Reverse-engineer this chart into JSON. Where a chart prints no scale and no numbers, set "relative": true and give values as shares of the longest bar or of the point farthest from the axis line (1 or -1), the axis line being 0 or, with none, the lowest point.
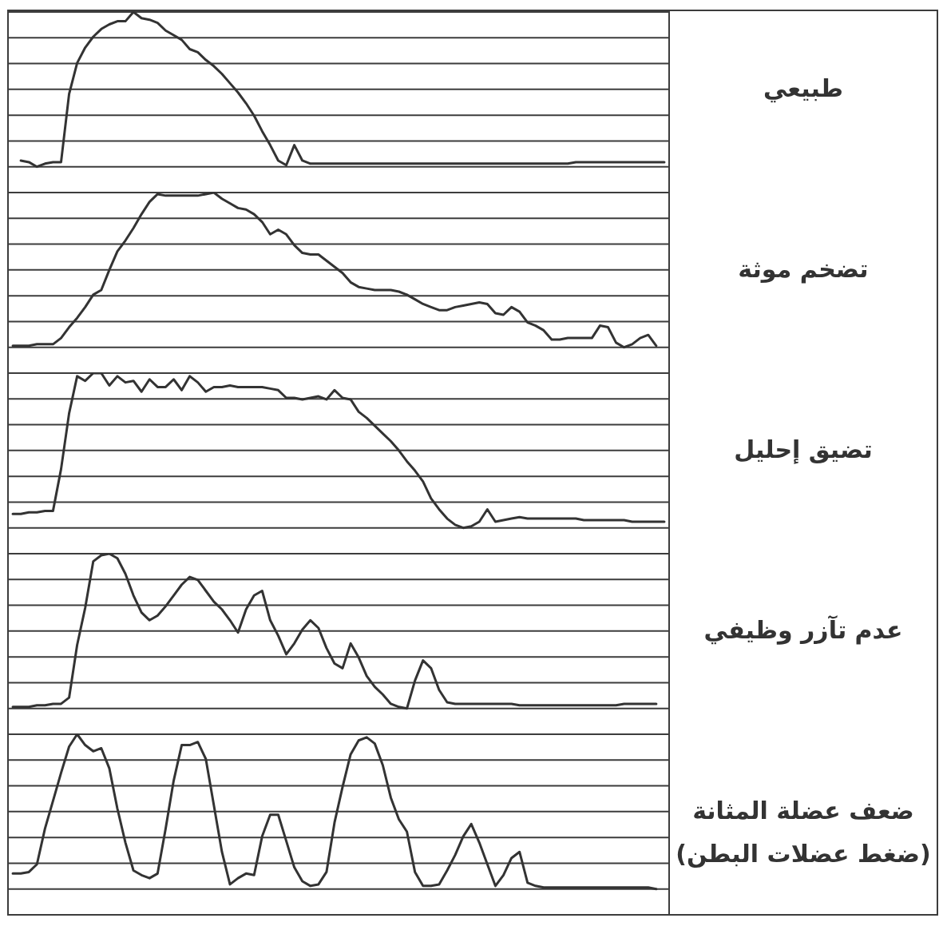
{
  "chart_data": [
    {
      "type": "line",
      "relative": true,
      "grid": "y",
      "categories": [
        null,
        null,
        null,
        null,
        null,
        null,
        null,
        null,
        null,
        null,
        null,
        null,
        null,
        null,
        null,
        null,
        null,
        null,
        null,
        null,
        null,
        null,
        null,
        null,
        null,
        null,
        null,
        null,
        null,
        null,
        null,
        null,
        null,
        null,
        null,
        null,
        null,
        null,
        null,
        null,
        null,
        null,
        null,
        null,
        null,
        null,
        null,
        null,
        null,
        null,
        null,
        null,
        null,
        null,
        null,
        null,
        null,
        null,
        null,
        null,
        null,
        null,
        null,
        null,
        null,
        null,
        null,
        null,
        null,
        null,
        null,
        null,
        null,
        null,
        null,
        null,
        null,
        null,
        null,
        null,
        null,
        null
      ],
      "series": [
        {
          "name": "طبيعي",
          "color": "#333333",
          "values": [
            null,
            0.04,
            0.03,
            0,
            0.02,
            0.03,
            0.03,
            0.47,
            0.67,
            0.77,
            0.84,
            0.89,
            0.92,
            0.94,
            0.94,
            1.0,
            0.96,
            0.95,
            0.93,
            0.88,
            0.85,
            0.82,
            0.76,
            0.74,
            0.69,
            0.65,
            0.6,
            0.54,
            0.48,
            0.41,
            0.33,
            0.23,
            0.14,
            0.04,
            0.01,
            0.14,
            0.04,
            0.02,
            0.02,
            0.02,
            0.02,
            0.02,
            0.02,
            0.02,
            0.02,
            0.02,
            0.02,
            0.02,
            0.02,
            0.02,
            0.02,
            0.02,
            0.02,
            0.02,
            0.02,
            0.02,
            0.02,
            0.02,
            0.02,
            0.02,
            0.02,
            0.02,
            0.02,
            0.02,
            0.02,
            0.02,
            0.02,
            0.02,
            0.02,
            0.02,
            0.03,
            0.03,
            0.03,
            0.03,
            0.03,
            0.03,
            0.03,
            0.03,
            0.03,
            0.03,
            0.03,
            0.03
          ]
        }
      ]
    },
    {
      "type": "line",
      "relative": true,
      "grid": "y",
      "categories": [
        null,
        null,
        null,
        null,
        null,
        null,
        null,
        null,
        null,
        null,
        null,
        null,
        null,
        null,
        null,
        null,
        null,
        null,
        null,
        null,
        null,
        null,
        null,
        null,
        null,
        null,
        null,
        null,
        null,
        null,
        null,
        null,
        null,
        null,
        null,
        null,
        null,
        null,
        null,
        null,
        null,
        null,
        null,
        null,
        null,
        null,
        null,
        null,
        null,
        null,
        null,
        null,
        null,
        null,
        null,
        null,
        null,
        null,
        null,
        null,
        null,
        null,
        null,
        null,
        null,
        null,
        null,
        null,
        null,
        null,
        null,
        null,
        null,
        null,
        null,
        null,
        null,
        null,
        null,
        null,
        null,
        null
      ],
      "series": [
        {
          "name": "تضخم موثة",
          "color": "#333333",
          "values": [
            0.01,
            0.01,
            0.01,
            0.02,
            0.02,
            0.02,
            0.06,
            0.13,
            0.19,
            0.26,
            0.34,
            0.37,
            0.5,
            0.62,
            0.69,
            0.77,
            0.86,
            0.94,
            0.99,
            0.98,
            0.98,
            0.98,
            0.98,
            0.98,
            0.99,
            1.0,
            0.96,
            0.93,
            0.9,
            0.89,
            0.86,
            0.81,
            0.73,
            0.76,
            0.73,
            0.66,
            0.61,
            0.6,
            0.6,
            0.56,
            0.52,
            0.48,
            0.42,
            0.39,
            0.38,
            0.37,
            0.37,
            0.37,
            0.36,
            0.34,
            0.31,
            0.28,
            0.26,
            0.24,
            0.24,
            0.26,
            0.27,
            0.28,
            0.29,
            0.28,
            0.22,
            0.21,
            0.26,
            0.23,
            0.16,
            0.14,
            0.11,
            0.05,
            0.05,
            0.06,
            0.06,
            0.06,
            0.06,
            0.14,
            0.13,
            0.03,
            0.0,
            0.02,
            0.06,
            0.08,
            0.01,
            null
          ]
        }
      ]
    },
    {
      "type": "line",
      "relative": true,
      "grid": "y",
      "categories": [
        null,
        null,
        null,
        null,
        null,
        null,
        null,
        null,
        null,
        null,
        null,
        null,
        null,
        null,
        null,
        null,
        null,
        null,
        null,
        null,
        null,
        null,
        null,
        null,
        null,
        null,
        null,
        null,
        null,
        null,
        null,
        null,
        null,
        null,
        null,
        null,
        null,
        null,
        null,
        null,
        null,
        null,
        null,
        null,
        null,
        null,
        null,
        null,
        null,
        null,
        null,
        null,
        null,
        null,
        null,
        null,
        null,
        null,
        null,
        null,
        null,
        null,
        null,
        null,
        null,
        null,
        null,
        null,
        null,
        null,
        null,
        null,
        null,
        null,
        null,
        null,
        null,
        null,
        null,
        null,
        null,
        null
      ],
      "series": [
        {
          "name": "تضيق إحليل",
          "color": "#333333",
          "values": [
            0.09,
            0.09,
            0.1,
            0.1,
            0.11,
            0.11,
            0.38,
            0.74,
            0.98,
            0.95,
            1.0,
            1.0,
            0.92,
            0.98,
            0.94,
            0.95,
            0.88,
            0.96,
            0.91,
            0.91,
            0.96,
            0.89,
            0.98,
            0.94,
            0.88,
            0.91,
            0.91,
            0.92,
            0.91,
            0.91,
            0.91,
            0.91,
            0.9,
            0.89,
            0.84,
            0.84,
            0.83,
            0.84,
            0.85,
            0.83,
            0.89,
            0.84,
            0.83,
            0.75,
            0.71,
            0.66,
            0.61,
            0.56,
            0.5,
            0.43,
            0.37,
            0.3,
            0.19,
            0.12,
            0.06,
            0.02,
            0.0,
            0.01,
            0.04,
            0.12,
            0.04,
            0.05,
            0.06,
            0.07,
            0.06,
            0.06,
            0.06,
            0.06,
            0.06,
            0.06,
            0.06,
            0.05,
            0.05,
            0.05,
            0.05,
            0.05,
            0.05,
            0.04,
            0.04,
            0.04,
            0.04,
            0.04
          ]
        }
      ]
    },
    {
      "type": "line",
      "relative": true,
      "grid": "y",
      "categories": [
        null,
        null,
        null,
        null,
        null,
        null,
        null,
        null,
        null,
        null,
        null,
        null,
        null,
        null,
        null,
        null,
        null,
        null,
        null,
        null,
        null,
        null,
        null,
        null,
        null,
        null,
        null,
        null,
        null,
        null,
        null,
        null,
        null,
        null,
        null,
        null,
        null,
        null,
        null,
        null,
        null,
        null,
        null,
        null,
        null,
        null,
        null,
        null,
        null,
        null,
        null,
        null,
        null,
        null,
        null,
        null,
        null,
        null,
        null,
        null,
        null,
        null,
        null,
        null,
        null,
        null,
        null,
        null,
        null,
        null,
        null,
        null,
        null,
        null,
        null,
        null,
        null,
        null,
        null,
        null,
        null,
        null
      ],
      "series": [
        {
          "name": "عدم تآزر وظيفي",
          "color": "#333333",
          "values": [
            0.01,
            0.01,
            0.01,
            0.02,
            0.02,
            0.03,
            0.03,
            0.07,
            0.41,
            0.65,
            0.95,
            0.99,
            1.0,
            0.97,
            0.87,
            0.73,
            0.62,
            0.57,
            0.6,
            0.66,
            0.73,
            0.8,
            0.85,
            0.83,
            0.76,
            0.69,
            0.64,
            0.57,
            0.49,
            0.64,
            0.73,
            0.76,
            0.57,
            0.47,
            0.35,
            0.42,
            0.51,
            0.57,
            0.52,
            0.39,
            0.29,
            0.26,
            0.42,
            0.33,
            0.21,
            0.14,
            0.09,
            0.03,
            0.01,
            0.0,
            0.18,
            0.31,
            0.26,
            0.12,
            0.04,
            0.03,
            0.03,
            0.03,
            0.03,
            0.03,
            0.03,
            0.03,
            0.03,
            0.02,
            0.02,
            0.02,
            0.02,
            0.02,
            0.02,
            0.02,
            0.02,
            0.02,
            0.02,
            0.02,
            0.02,
            0.02,
            0.03,
            0.03,
            0.03,
            0.03,
            0.03,
            null
          ]
        }
      ]
    },
    {
      "type": "line",
      "relative": true,
      "grid": "y",
      "categories": [
        null,
        null,
        null,
        null,
        null,
        null,
        null,
        null,
        null,
        null,
        null,
        null,
        null,
        null,
        null,
        null,
        null,
        null,
        null,
        null,
        null,
        null,
        null,
        null,
        null,
        null,
        null,
        null,
        null,
        null,
        null,
        null,
        null,
        null,
        null,
        null,
        null,
        null,
        null,
        null,
        null,
        null,
        null,
        null,
        null,
        null,
        null,
        null,
        null,
        null,
        null,
        null,
        null,
        null,
        null,
        null,
        null,
        null,
        null,
        null,
        null,
        null,
        null,
        null,
        null,
        null,
        null,
        null,
        null,
        null,
        null,
        null,
        null,
        null,
        null,
        null,
        null,
        null,
        null,
        null,
        null,
        null
      ],
      "series": [
        {
          "name": "ضعف عضلة المثانة (ضغط عضلات البطن)",
          "color": "#333333",
          "values": [
            0.1,
            0.1,
            0.11,
            0.16,
            0.39,
            0.57,
            0.75,
            0.92,
            1.0,
            0.93,
            0.89,
            0.91,
            0.78,
            0.52,
            0.3,
            0.12,
            0.09,
            0.07,
            0.1,
            0.39,
            0.7,
            0.93,
            0.93,
            0.95,
            0.84,
            0.54,
            0.24,
            0.03,
            0.07,
            0.1,
            0.09,
            0.34,
            0.48,
            0.48,
            0.31,
            0.14,
            0.05,
            0.02,
            0.03,
            0.11,
            0.43,
            0.66,
            0.87,
            0.96,
            0.98,
            0.94,
            0.8,
            0.59,
            0.45,
            0.37,
            0.11,
            0.02,
            0.02,
            0.03,
            0.12,
            0.22,
            0.34,
            0.42,
            0.3,
            0.16,
            0.02,
            0.09,
            0.2,
            0.24,
            0.04,
            0.02,
            0.01,
            0.01,
            0.01,
            0.01,
            0.01,
            0.01,
            0.01,
            0.01,
            0.01,
            0.01,
            0.01,
            0.01,
            0.01,
            0.01,
            0.0,
            null
          ]
        }
      ]
    }
  ]
}
